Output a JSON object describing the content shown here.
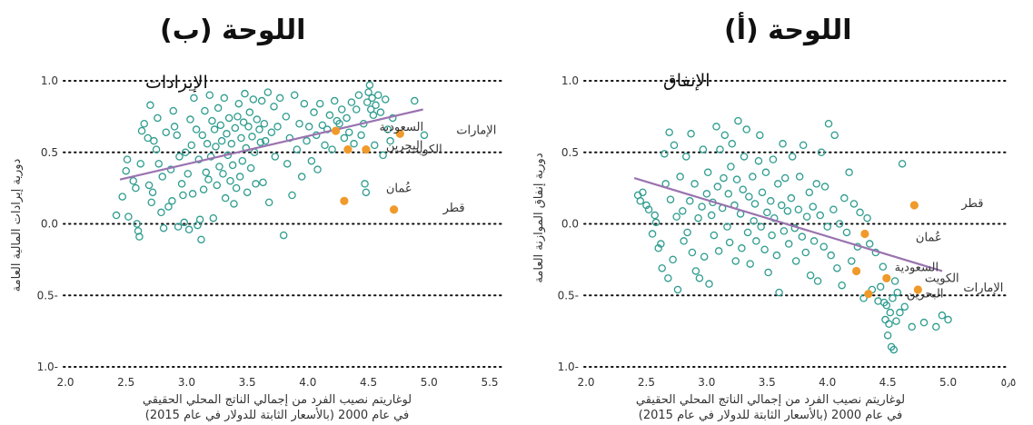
{
  "panels": [
    {
      "panel_title": "اللوحة (ب)",
      "inner_title": "الإيرادات",
      "ylabel": "دورية إيرادات المالية العامة",
      "xlabel_line1": "لوغاريتم نصيب الفرد من إجمالي الناتج المحلي الحقيقي",
      "xlabel_line2": "في عام 2000 (بالأسعار الثابتة للدولار في عام 2015)"
    },
    {
      "panel_title": "اللوحة (أ)",
      "inner_title": "الإنفاق",
      "ylabel": "دورية إنفاق الموازنة العامة",
      "xlabel_line1": "لوغاريتم نصيب الفرد من إجمالي الناتج المحلي الحقيقي",
      "xlabel_line2": "في عام 2000 (بالأسعار الثابتة للدولار في عام 2015)"
    }
  ],
  "colors": {
    "open_marker": "#2e9c8f",
    "highlight": "#ef9a2a",
    "fit_line": "#9a73b0",
    "gridline": "#111111"
  },
  "chart_data": [
    {
      "type": "scatter",
      "id": "panel-b",
      "xlim": [
        2.0,
        5.5
      ],
      "ylim": [
        -1.0,
        1.0
      ],
      "xticks": [
        2.0,
        2.5,
        3.0,
        3.5,
        4.0,
        4.5,
        5.0,
        5.5
      ],
      "yticks": [
        -1.0,
        -0.5,
        0.0,
        0.5,
        1.0
      ],
      "xtick_labels": [
        "2.0",
        "2.5",
        "3.0",
        "3.5",
        "4.0",
        "4.5",
        "5.0",
        "5.5"
      ],
      "ytick_labels": [
        "1.0-",
        "0.5-",
        "0.0",
        "0.5",
        "1.0"
      ],
      "grid": "horizontal dotted",
      "fit_line": [
        [
          2.45,
          0.31
        ],
        [
          4.95,
          0.8
        ]
      ],
      "highlighted": [
        {
          "label": "الإمارات",
          "x": 4.76,
          "y": 0.63
        },
        {
          "label": "السعودية",
          "x": 4.23,
          "y": 0.65
        },
        {
          "label": "البحرين",
          "x": 4.33,
          "y": 0.52
        },
        {
          "label": "الكويت",
          "x": 4.48,
          "y": 0.52
        },
        {
          "label": "عُمان",
          "x": 4.3,
          "y": 0.16
        },
        {
          "label": "قطر",
          "x": 4.71,
          "y": 0.1
        }
      ],
      "points": [
        [
          2.42,
          0.06
        ],
        [
          2.47,
          0.19
        ],
        [
          2.5,
          0.37
        ],
        [
          2.51,
          0.45
        ],
        [
          2.52,
          0.05
        ],
        [
          2.56,
          0.3
        ],
        [
          2.58,
          0.25
        ],
        [
          2.59,
          0.0
        ],
        [
          2.6,
          -0.05
        ],
        [
          2.61,
          -0.09
        ],
        [
          2.62,
          0.42
        ],
        [
          2.63,
          0.65
        ],
        [
          2.65,
          0.7
        ],
        [
          2.68,
          0.6
        ],
        [
          2.69,
          0.27
        ],
        [
          2.7,
          0.83
        ],
        [
          2.71,
          0.15
        ],
        [
          2.72,
          0.22
        ],
        [
          2.73,
          0.58
        ],
        [
          2.75,
          0.52
        ],
        [
          2.76,
          0.74
        ],
        [
          2.77,
          0.42
        ],
        [
          2.79,
          0.08
        ],
        [
          2.8,
          0.33
        ],
        [
          2.81,
          -0.03
        ],
        [
          2.83,
          0.64
        ],
        [
          2.85,
          0.12
        ],
        [
          2.87,
          0.38
        ],
        [
          2.88,
          0.16
        ],
        [
          2.89,
          0.79
        ],
        [
          2.9,
          0.68
        ],
        [
          2.92,
          0.62
        ],
        [
          2.93,
          -0.02
        ],
        [
          2.94,
          0.47
        ],
        [
          2.96,
          0.28
        ],
        [
          2.97,
          0.2
        ],
        [
          2.98,
          0.01
        ],
        [
          2.99,
          0.5
        ],
        [
          3.01,
          0.35
        ],
        [
          3.02,
          -0.04
        ],
        [
          3.03,
          0.73
        ],
        [
          3.04,
          0.55
        ],
        [
          3.05,
          0.21
        ],
        [
          3.06,
          0.88
        ],
        [
          3.08,
          0.66
        ],
        [
          3.09,
          -0.01
        ],
        [
          3.1,
          0.45
        ],
        [
          3.11,
          0.03
        ],
        [
          3.12,
          -0.11
        ],
        [
          3.13,
          0.62
        ],
        [
          3.14,
          0.24
        ],
        [
          3.15,
          0.79
        ],
        [
          3.16,
          0.36
        ],
        [
          3.17,
          0.56
        ],
        [
          3.18,
          0.31
        ],
        [
          3.19,
          0.9
        ],
        [
          3.2,
          0.47
        ],
        [
          3.21,
          0.72
        ],
        [
          3.22,
          0.04
        ],
        [
          3.23,
          0.66
        ],
        [
          3.24,
          0.54
        ],
        [
          3.25,
          0.27
        ],
        [
          3.26,
          0.81
        ],
        [
          3.27,
          0.4
        ],
        [
          3.28,
          0.69
        ],
        [
          3.29,
          0.58
        ],
        [
          3.3,
          0.35
        ],
        [
          3.31,
          0.88
        ],
        [
          3.32,
          0.18
        ],
        [
          3.33,
          0.63
        ],
        [
          3.34,
          0.48
        ],
        [
          3.35,
          0.74
        ],
        [
          3.36,
          0.3
        ],
        [
          3.37,
          0.56
        ],
        [
          3.38,
          0.41
        ],
        [
          3.39,
          0.14
        ],
        [
          3.4,
          0.67
        ],
        [
          3.41,
          0.25
        ],
        [
          3.42,
          0.75
        ],
        [
          3.43,
          0.84
        ],
        [
          3.44,
          0.33
        ],
        [
          3.45,
          0.6
        ],
        [
          3.46,
          0.44
        ],
        [
          3.47,
          0.71
        ],
        [
          3.48,
          0.91
        ],
        [
          3.49,
          0.53
        ],
        [
          3.5,
          0.22
        ],
        [
          3.51,
          0.68
        ],
        [
          3.52,
          0.78
        ],
        [
          3.53,
          0.39
        ],
        [
          3.54,
          0.61
        ],
        [
          3.55,
          0.87
        ],
        [
          3.56,
          0.5
        ],
        [
          3.57,
          0.28
        ],
        [
          3.58,
          0.73
        ],
        [
          3.6,
          0.66
        ],
        [
          3.61,
          0.57
        ],
        [
          3.62,
          0.86
        ],
        [
          3.63,
          0.29
        ],
        [
          3.64,
          0.7
        ],
        [
          3.65,
          0.58
        ],
        [
          3.67,
          0.92
        ],
        [
          3.68,
          0.15
        ],
        [
          3.7,
          0.64
        ],
        [
          3.72,
          0.82
        ],
        [
          3.73,
          0.47
        ],
        [
          3.75,
          0.68
        ],
        [
          3.77,
          0.88
        ],
        [
          3.8,
          -0.08
        ],
        [
          3.82,
          0.75
        ],
        [
          3.83,
          0.42
        ],
        [
          3.85,
          0.6
        ],
        [
          3.87,
          0.2
        ],
        [
          3.89,
          0.9
        ],
        [
          3.91,
          0.52
        ],
        [
          3.93,
          0.7
        ],
        [
          3.95,
          0.33
        ],
        [
          3.97,
          0.84
        ],
        [
          3.99,
          0.58
        ],
        [
          4.01,
          0.68
        ],
        [
          4.03,
          0.44
        ],
        [
          4.05,
          0.78
        ],
        [
          4.07,
          0.62
        ],
        [
          4.08,
          0.38
        ],
        [
          4.1,
          0.84
        ],
        [
          4.12,
          0.69
        ],
        [
          4.14,
          0.55
        ],
        [
          4.16,
          0.66
        ],
        [
          4.18,
          0.76
        ],
        [
          4.2,
          0.52
        ],
        [
          4.22,
          0.86
        ],
        [
          4.24,
          0.72
        ],
        [
          4.26,
          0.7
        ],
        [
          4.28,
          0.8
        ],
        [
          4.3,
          0.6
        ],
        [
          4.32,
          0.74
        ],
        [
          4.34,
          0.64
        ],
        [
          4.36,
          0.85
        ],
        [
          4.38,
          0.56
        ],
        [
          4.4,
          0.8
        ],
        [
          4.42,
          0.9
        ],
        [
          4.44,
          0.62
        ],
        [
          4.46,
          0.7
        ],
        [
          4.47,
          0.28
        ],
        [
          4.48,
          0.22
        ],
        [
          4.49,
          0.85
        ],
        [
          4.5,
          0.92
        ],
        [
          4.51,
          0.97
        ],
        [
          4.52,
          0.8
        ],
        [
          4.53,
          0.88
        ],
        [
          4.54,
          0.76
        ],
        [
          4.55,
          0.55
        ],
        [
          4.56,
          0.83
        ],
        [
          4.58,
          0.9
        ],
        [
          4.6,
          0.78
        ],
        [
          4.62,
          0.48
        ],
        [
          4.64,
          0.87
        ],
        [
          4.66,
          0.66
        ],
        [
          4.68,
          0.58
        ],
        [
          4.7,
          0.74
        ],
        [
          4.88,
          0.86
        ],
        [
          4.96,
          0.62
        ]
      ]
    },
    {
      "type": "scatter",
      "id": "panel-a",
      "xlim": [
        2.0,
        5.5
      ],
      "ylim": [
        -1.0,
        1.0
      ],
      "xticks": [
        2.0,
        2.5,
        3.0,
        3.5,
        4.0,
        4.5,
        5.0,
        5.5
      ],
      "yticks": [
        -1.0,
        -0.5,
        0.0,
        0.5,
        1.0
      ],
      "xtick_labels": [
        "2.0",
        "2.5",
        "3.0",
        "3.5",
        "4.0",
        "4.5",
        "5.0",
        "٥٫٥"
      ],
      "ytick_labels": [
        "1.0-",
        "0.5-",
        "0.0",
        "0.5",
        "1.0"
      ],
      "grid": "horizontal dotted",
      "fit_line": [
        [
          2.4,
          0.32
        ],
        [
          4.95,
          -0.33
        ]
      ],
      "highlighted": [
        {
          "label": "قطر",
          "x": 4.72,
          "y": 0.13
        },
        {
          "label": "عُمان",
          "x": 4.31,
          "y": -0.07
        },
        {
          "label": "السعودية",
          "x": 4.24,
          "y": -0.33
        },
        {
          "label": "الكويت",
          "x": 4.49,
          "y": -0.38
        },
        {
          "label": "الإمارات",
          "x": 4.75,
          "y": -0.46
        },
        {
          "label": "البحرين",
          "x": 4.34,
          "y": -0.49
        }
      ],
      "points": [
        [
          2.43,
          0.2
        ],
        [
          2.45,
          0.16
        ],
        [
          2.47,
          0.22
        ],
        [
          2.5,
          0.13
        ],
        [
          2.52,
          0.1
        ],
        [
          2.55,
          -0.07
        ],
        [
          2.57,
          0.06
        ],
        [
          2.58,
          0.01
        ],
        [
          2.6,
          -0.17
        ],
        [
          2.62,
          -0.14
        ],
        [
          2.63,
          -0.31
        ],
        [
          2.65,
          0.49
        ],
        [
          2.66,
          0.28
        ],
        [
          2.68,
          -0.38
        ],
        [
          2.69,
          0.64
        ],
        [
          2.7,
          0.17
        ],
        [
          2.72,
          -0.25
        ],
        [
          2.73,
          0.55
        ],
        [
          2.75,
          0.05
        ],
        [
          2.76,
          -0.46
        ],
        [
          2.78,
          0.33
        ],
        [
          2.8,
          0.09
        ],
        [
          2.81,
          -0.12
        ],
        [
          2.83,
          0.47
        ],
        [
          2.84,
          -0.06
        ],
        [
          2.86,
          0.16
        ],
        [
          2.87,
          0.63
        ],
        [
          2.88,
          -0.2
        ],
        [
          2.9,
          0.28
        ],
        [
          2.91,
          -0.33
        ],
        [
          2.93,
          0.04
        ],
        [
          2.94,
          -0.38
        ],
        [
          2.96,
          0.12
        ],
        [
          2.97,
          0.52
        ],
        [
          2.98,
          -0.23
        ],
        [
          3.0,
          0.21
        ],
        [
          3.01,
          0.36
        ],
        [
          3.02,
          -0.42
        ],
        [
          3.04,
          0.06
        ],
        [
          3.05,
          0.15
        ],
        [
          3.06,
          -0.08
        ],
        [
          3.08,
          0.68
        ],
        [
          3.09,
          0.26
        ],
        [
          3.1,
          -0.19
        ],
        [
          3.11,
          0.52
        ],
        [
          3.13,
          0.11
        ],
        [
          3.14,
          0.32
        ],
        [
          3.15,
          0.62
        ],
        [
          3.17,
          -0.02
        ],
        [
          3.18,
          0.21
        ],
        [
          3.19,
          -0.13
        ],
        [
          3.2,
          0.4
        ],
        [
          3.21,
          0.56
        ],
        [
          3.23,
          0.13
        ],
        [
          3.24,
          -0.26
        ],
        [
          3.25,
          0.31
        ],
        [
          3.26,
          0.72
        ],
        [
          3.28,
          0.07
        ],
        [
          3.29,
          -0.17
        ],
        [
          3.3,
          0.24
        ],
        [
          3.31,
          0.47
        ],
        [
          3.33,
          0.66
        ],
        [
          3.34,
          -0.06
        ],
        [
          3.35,
          0.19
        ],
        [
          3.36,
          -0.28
        ],
        [
          3.38,
          0.33
        ],
        [
          3.39,
          0.02
        ],
        [
          3.4,
          0.14
        ],
        [
          3.41,
          -0.12
        ],
        [
          3.43,
          0.44
        ],
        [
          3.44,
          0.62
        ],
        [
          3.45,
          -0.02
        ],
        [
          3.46,
          0.22
        ],
        [
          3.48,
          -0.18
        ],
        [
          3.49,
          0.36
        ],
        [
          3.5,
          0.08
        ],
        [
          3.51,
          -0.34
        ],
        [
          3.53,
          0.16
        ],
        [
          3.54,
          -0.08
        ],
        [
          3.55,
          0.45
        ],
        [
          3.56,
          0.04
        ],
        [
          3.58,
          -0.22
        ],
        [
          3.59,
          0.28
        ],
        [
          3.6,
          -0.48
        ],
        [
          3.62,
          0.13
        ],
        [
          3.63,
          0.56
        ],
        [
          3.64,
          -0.05
        ],
        [
          3.65,
          0.32
        ],
        [
          3.67,
          0.09
        ],
        [
          3.68,
          -0.14
        ],
        [
          3.7,
          0.18
        ],
        [
          3.71,
          0.47
        ],
        [
          3.73,
          -0.03
        ],
        [
          3.74,
          -0.26
        ],
        [
          3.76,
          0.1
        ],
        [
          3.77,
          0.33
        ],
        [
          3.79,
          -0.09
        ],
        [
          3.8,
          0.55
        ],
        [
          3.82,
          -0.2
        ],
        [
          3.83,
          0.05
        ],
        [
          3.85,
          0.22
        ],
        [
          3.86,
          -0.36
        ],
        [
          3.88,
          0.12
        ],
        [
          3.89,
          -0.12
        ],
        [
          3.91,
          0.28
        ],
        [
          3.92,
          -0.4
        ],
        [
          3.94,
          0.06
        ],
        [
          3.95,
          0.5
        ],
        [
          3.97,
          -0.16
        ],
        [
          3.98,
          0.26
        ],
        [
          4.0,
          -0.02
        ],
        [
          4.01,
          0.7
        ],
        [
          4.03,
          -0.22
        ],
        [
          4.05,
          0.1
        ],
        [
          4.06,
          0.62
        ],
        [
          4.08,
          -0.31
        ],
        [
          4.1,
          0.0
        ],
        [
          4.12,
          -0.43
        ],
        [
          4.14,
          0.18
        ],
        [
          4.16,
          -0.06
        ],
        [
          4.18,
          0.36
        ],
        [
          4.2,
          -0.26
        ],
        [
          4.22,
          0.14
        ],
        [
          4.25,
          -0.16
        ],
        [
          4.27,
          0.08
        ],
        [
          4.3,
          -0.52
        ],
        [
          4.33,
          0.04
        ],
        [
          4.35,
          -0.14
        ],
        [
          4.37,
          -0.46
        ],
        [
          4.4,
          -0.2
        ],
        [
          4.42,
          -0.54
        ],
        [
          4.44,
          -0.44
        ],
        [
          4.46,
          -0.3
        ],
        [
          4.47,
          -0.55
        ],
        [
          4.48,
          -0.67
        ],
        [
          4.49,
          -0.57
        ],
        [
          4.5,
          -0.78
        ],
        [
          4.51,
          -0.7
        ],
        [
          4.52,
          -0.62
        ],
        [
          4.53,
          -0.86
        ],
        [
          4.54,
          -0.52
        ],
        [
          4.55,
          -0.88
        ],
        [
          4.56,
          -0.4
        ],
        [
          4.57,
          -0.68
        ],
        [
          4.58,
          -0.48
        ],
        [
          4.6,
          -0.62
        ],
        [
          4.62,
          0.42
        ],
        [
          4.64,
          -0.58
        ],
        [
          4.7,
          -0.72
        ],
        [
          4.8,
          -0.69
        ],
        [
          4.9,
          -0.72
        ],
        [
          4.95,
          -0.64
        ],
        [
          5.0,
          -0.67
        ]
      ]
    }
  ]
}
